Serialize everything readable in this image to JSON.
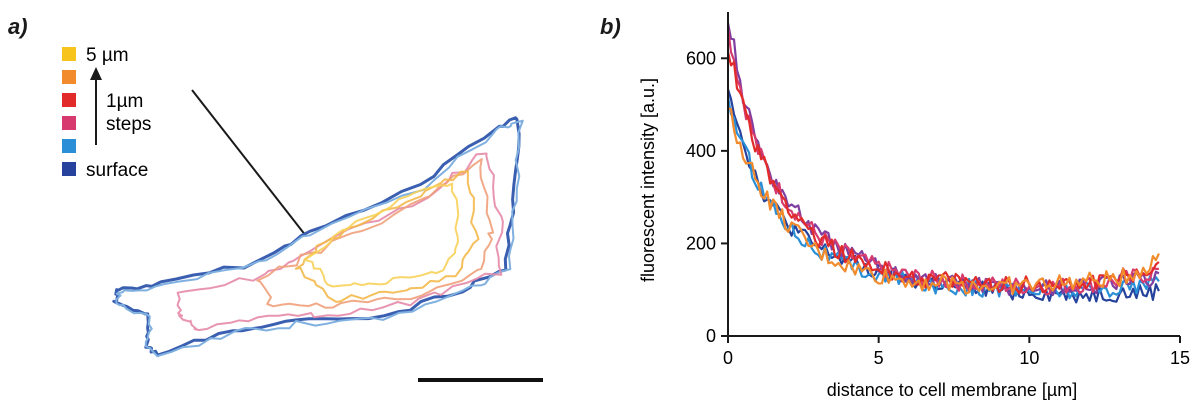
{
  "panel_a": {
    "label": "a)",
    "legend": {
      "entries": [
        {
          "color": "#f6c41c",
          "text": "5 µm"
        },
        {
          "color": "#f28b2c",
          "text": ""
        },
        {
          "color": "#e12a2a",
          "text": "1µm"
        },
        {
          "color": "#d63a6e",
          "text": "steps"
        },
        {
          "color": "#2a8fd6",
          "text": ""
        },
        {
          "color": "#26429c",
          "text": "surface"
        }
      ]
    },
    "contour_colors": [
      "#3a5fb0",
      "#7fb0e0",
      "#e58aa8",
      "#f0a07a",
      "#f3b84a",
      "#f7d15a"
    ],
    "scale_bar": true
  },
  "chart_data": {
    "label": "b)",
    "type": "line",
    "xlabel": "distance to cell membrane [µm]",
    "ylabel": "fluorescent intensity [a.u.]",
    "xlim": [
      0,
      15
    ],
    "ylim": [
      0,
      700
    ],
    "xticks": [
      0,
      5,
      10,
      15
    ],
    "yticks": [
      0,
      200,
      400,
      600
    ],
    "grid": false,
    "series": [
      {
        "color": "#26429c",
        "values": [
          [
            0,
            545
          ],
          [
            0.5,
            420
          ],
          [
            1,
            330
          ],
          [
            1.5,
            280
          ],
          [
            2,
            240
          ],
          [
            3,
            190
          ],
          [
            4,
            160
          ],
          [
            5,
            135
          ],
          [
            6,
            120
          ],
          [
            7,
            112
          ],
          [
            8,
            105
          ],
          [
            9,
            100
          ],
          [
            10,
            95
          ],
          [
            11,
            92
          ],
          [
            12,
            90
          ],
          [
            13,
            92
          ],
          [
            14,
            95
          ],
          [
            14.3,
            97
          ]
        ]
      },
      {
        "color": "#2a8fd6",
        "values": [
          [
            0,
            510
          ],
          [
            0.5,
            410
          ],
          [
            1,
            330
          ],
          [
            1.5,
            280
          ],
          [
            2,
            240
          ],
          [
            3,
            185
          ],
          [
            4,
            155
          ],
          [
            5,
            130
          ],
          [
            6,
            118
          ],
          [
            7,
            110
          ],
          [
            8,
            105
          ],
          [
            9,
            102
          ],
          [
            10,
            100
          ],
          [
            11,
            98
          ],
          [
            12,
            100
          ],
          [
            13,
            105
          ],
          [
            14,
            112
          ],
          [
            14.3,
            118
          ]
        ]
      },
      {
        "color": "#7f3fa0",
        "values": [
          [
            0,
            690
          ],
          [
            0.5,
            520
          ],
          [
            1,
            410
          ],
          [
            1.5,
            340
          ],
          [
            2,
            290
          ],
          [
            3,
            220
          ],
          [
            4,
            180
          ],
          [
            5,
            150
          ],
          [
            6,
            130
          ],
          [
            7,
            120
          ],
          [
            8,
            112
          ],
          [
            9,
            108
          ],
          [
            10,
            105
          ],
          [
            11,
            105
          ],
          [
            12,
            108
          ],
          [
            13,
            115
          ],
          [
            14,
            125
          ],
          [
            14.3,
            135
          ]
        ]
      },
      {
        "color": "#d63a6e",
        "values": [
          [
            0,
            660
          ],
          [
            0.5,
            510
          ],
          [
            1,
            400
          ],
          [
            1.5,
            335
          ],
          [
            2,
            285
          ],
          [
            3,
            215
          ],
          [
            4,
            175
          ],
          [
            5,
            148
          ],
          [
            6,
            130
          ],
          [
            7,
            120
          ],
          [
            8,
            114
          ],
          [
            9,
            110
          ],
          [
            10,
            108
          ],
          [
            11,
            108
          ],
          [
            12,
            112
          ],
          [
            13,
            120
          ],
          [
            14,
            135
          ],
          [
            14.3,
            145
          ]
        ]
      },
      {
        "color": "#e12a2a",
        "values": [
          [
            0,
            630
          ],
          [
            0.5,
            500
          ],
          [
            1,
            395
          ],
          [
            1.5,
            330
          ],
          [
            2,
            280
          ],
          [
            3,
            210
          ],
          [
            4,
            172
          ],
          [
            5,
            145
          ],
          [
            6,
            128
          ],
          [
            7,
            120
          ],
          [
            8,
            115
          ],
          [
            9,
            112
          ],
          [
            10,
            110
          ],
          [
            11,
            112
          ],
          [
            12,
            118
          ],
          [
            13,
            128
          ],
          [
            14,
            145
          ],
          [
            14.3,
            160
          ]
        ]
      },
      {
        "color": "#f28b2c",
        "values": [
          [
            0,
            490
          ],
          [
            0.5,
            400
          ],
          [
            1,
            330
          ],
          [
            1.5,
            280
          ],
          [
            2,
            240
          ],
          [
            3,
            180
          ],
          [
            4,
            150
          ],
          [
            5,
            130
          ],
          [
            6,
            120
          ],
          [
            7,
            115
          ],
          [
            8,
            110
          ],
          [
            9,
            108
          ],
          [
            10,
            110
          ],
          [
            11,
            115
          ],
          [
            12,
            118
          ],
          [
            13,
            125
          ],
          [
            14,
            150
          ],
          [
            14.3,
            178
          ]
        ]
      }
    ]
  }
}
